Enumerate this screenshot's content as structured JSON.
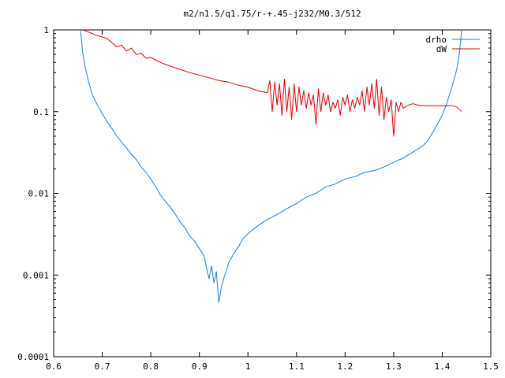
{
  "chart_data": {
    "type": "line",
    "title": "m2/n1.5/q1.75/r-+.45-j232/M0.3/512",
    "xlabel": "",
    "ylabel": "",
    "xlim": [
      0.6,
      1.5
    ],
    "ylim": [
      0.0001,
      1
    ],
    "yscale": "log",
    "grid": false,
    "legend_position": "top-right",
    "x_ticks": [
      {
        "value": 0.6,
        "label": "0.6"
      },
      {
        "value": 0.7,
        "label": "0.7"
      },
      {
        "value": 0.8,
        "label": "0.8"
      },
      {
        "value": 0.9,
        "label": "0.9"
      },
      {
        "value": 1.0,
        "label": "1"
      },
      {
        "value": 1.1,
        "label": "1.1"
      },
      {
        "value": 1.2,
        "label": "1.2"
      },
      {
        "value": 1.3,
        "label": "1.3"
      },
      {
        "value": 1.4,
        "label": "1.4"
      },
      {
        "value": 1.5,
        "label": "1.5"
      }
    ],
    "y_ticks": [
      {
        "value": 1,
        "label": "1"
      },
      {
        "value": 0.1,
        "label": "0.1"
      },
      {
        "value": 0.01,
        "label": "0.01"
      },
      {
        "value": 0.001,
        "label": "0.001"
      },
      {
        "value": 0.0001,
        "label": "0.0001"
      }
    ],
    "series": [
      {
        "name": "drho",
        "color": "#1a7fd4",
        "x": [
          0.655,
          0.66,
          0.665,
          0.67,
          0.675,
          0.68,
          0.69,
          0.7,
          0.71,
          0.72,
          0.73,
          0.74,
          0.75,
          0.76,
          0.77,
          0.78,
          0.79,
          0.8,
          0.81,
          0.82,
          0.83,
          0.84,
          0.85,
          0.86,
          0.87,
          0.88,
          0.89,
          0.9,
          0.91,
          0.915,
          0.92,
          0.925,
          0.93,
          0.935,
          0.94,
          0.945,
          0.95,
          0.955,
          0.96,
          0.97,
          0.98,
          0.99,
          1.0,
          1.02,
          1.04,
          1.06,
          1.08,
          1.1,
          1.12,
          1.14,
          1.16,
          1.18,
          1.2,
          1.22,
          1.24,
          1.26,
          1.28,
          1.3,
          1.32,
          1.34,
          1.36,
          1.37,
          1.38,
          1.39,
          1.4,
          1.41,
          1.42,
          1.43,
          1.435,
          1.44
        ],
        "values": [
          1.0,
          0.52,
          0.35,
          0.26,
          0.2,
          0.16,
          0.12,
          0.095,
          0.075,
          0.062,
          0.05,
          0.042,
          0.036,
          0.03,
          0.026,
          0.021,
          0.018,
          0.015,
          0.012,
          0.0095,
          0.008,
          0.0068,
          0.0056,
          0.0045,
          0.0038,
          0.003,
          0.0026,
          0.0021,
          0.0017,
          0.0012,
          0.0009,
          0.0013,
          0.0008,
          0.0011,
          0.00046,
          0.0007,
          0.0009,
          0.0011,
          0.0014,
          0.0018,
          0.0022,
          0.0028,
          0.0032,
          0.004,
          0.0048,
          0.0055,
          0.0065,
          0.0075,
          0.009,
          0.01,
          0.012,
          0.013,
          0.015,
          0.016,
          0.018,
          0.019,
          0.021,
          0.024,
          0.027,
          0.032,
          0.038,
          0.044,
          0.055,
          0.07,
          0.09,
          0.13,
          0.2,
          0.33,
          0.5,
          1.0
        ]
      },
      {
        "name": "dW",
        "color": "#dd0000",
        "x": [
          0.66,
          0.67,
          0.68,
          0.69,
          0.7,
          0.71,
          0.72,
          0.73,
          0.74,
          0.75,
          0.76,
          0.77,
          0.78,
          0.79,
          0.8,
          0.82,
          0.84,
          0.86,
          0.88,
          0.9,
          0.92,
          0.94,
          0.96,
          0.98,
          1.0,
          1.02,
          1.04,
          1.045,
          1.05,
          1.055,
          1.06,
          1.065,
          1.07,
          1.075,
          1.08,
          1.085,
          1.09,
          1.095,
          1.1,
          1.105,
          1.11,
          1.115,
          1.12,
          1.125,
          1.13,
          1.135,
          1.14,
          1.145,
          1.15,
          1.155,
          1.16,
          1.165,
          1.17,
          1.175,
          1.18,
          1.185,
          1.19,
          1.195,
          1.2,
          1.205,
          1.21,
          1.215,
          1.22,
          1.225,
          1.23,
          1.235,
          1.24,
          1.245,
          1.25,
          1.255,
          1.26,
          1.265,
          1.27,
          1.275,
          1.28,
          1.285,
          1.29,
          1.295,
          1.3,
          1.305,
          1.31,
          1.315,
          1.32,
          1.33,
          1.34,
          1.35,
          1.36,
          1.38,
          1.4,
          1.42,
          1.43,
          1.44
        ],
        "values": [
          1.0,
          0.95,
          0.9,
          0.85,
          0.82,
          0.78,
          0.7,
          0.62,
          0.65,
          0.55,
          0.6,
          0.5,
          0.52,
          0.45,
          0.46,
          0.4,
          0.36,
          0.33,
          0.3,
          0.28,
          0.26,
          0.24,
          0.23,
          0.21,
          0.2,
          0.18,
          0.17,
          0.24,
          0.1,
          0.23,
          0.12,
          0.22,
          0.09,
          0.25,
          0.1,
          0.2,
          0.08,
          0.22,
          0.1,
          0.2,
          0.12,
          0.18,
          0.11,
          0.17,
          0.12,
          0.16,
          0.07,
          0.19,
          0.1,
          0.17,
          0.12,
          0.16,
          0.1,
          0.13,
          0.11,
          0.14,
          0.09,
          0.15,
          0.12,
          0.16,
          0.1,
          0.14,
          0.11,
          0.15,
          0.12,
          0.18,
          0.1,
          0.2,
          0.12,
          0.22,
          0.11,
          0.25,
          0.09,
          0.2,
          0.08,
          0.15,
          0.1,
          0.14,
          0.05,
          0.13,
          0.1,
          0.13,
          0.11,
          0.12,
          0.125,
          0.12,
          0.118,
          0.118,
          0.118,
          0.118,
          0.114,
          0.1
        ]
      }
    ]
  }
}
